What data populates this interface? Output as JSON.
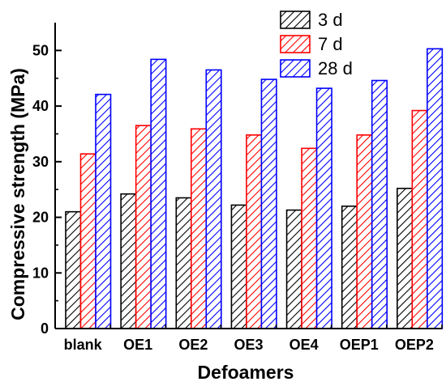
{
  "chart_data": {
    "type": "bar",
    "categories": [
      "blank",
      "OE1",
      "OE2",
      "OE3",
      "OE4",
      "OEP1",
      "OEP2"
    ],
    "series": [
      {
        "name": "3 d",
        "color": "#000000",
        "values": [
          21.0,
          24.2,
          23.5,
          22.2,
          21.3,
          22.0,
          25.2
        ]
      },
      {
        "name": "7 d",
        "color": "#ff0000",
        "values": [
          31.4,
          36.5,
          35.9,
          34.8,
          32.4,
          34.8,
          39.2
        ]
      },
      {
        "name": "28 d",
        "color": "#0000ff",
        "values": [
          42.1,
          48.4,
          46.5,
          44.8,
          43.2,
          44.6,
          50.3
        ]
      }
    ],
    "xlabel": "Defoamers",
    "ylabel": "Compressive strength (MPa)",
    "ylim": [
      0,
      55
    ],
    "yticks": [
      0,
      10,
      20,
      30,
      40,
      50
    ],
    "legend": "top-right",
    "grid": false,
    "fill_pattern": "diagonal-hatch"
  }
}
